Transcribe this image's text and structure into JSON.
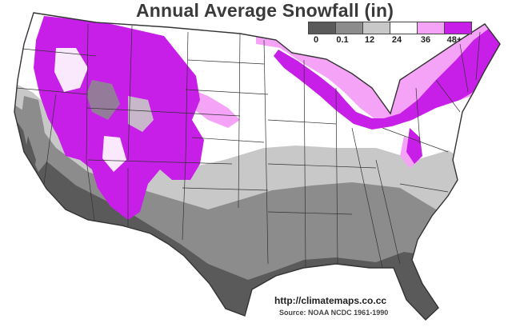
{
  "title": "Annual Average Snowfall (in)",
  "legend": {
    "labels": [
      "0",
      "0.1",
      "12",
      "24",
      "36",
      "48+"
    ],
    "colors": [
      "#5a5a5a",
      "#8c8c8c",
      "#c8c8c8",
      "#ffffff",
      "#f5a3f7",
      "#c71fe8"
    ]
  },
  "source": {
    "url": "http://climatemaps.co.cc",
    "credit": "Source: NOAA NCDC 1961-1990"
  },
  "map": {
    "type": "choropleth",
    "region": "contiguous United States",
    "variable": "annual average snowfall",
    "unit": "in"
  }
}
